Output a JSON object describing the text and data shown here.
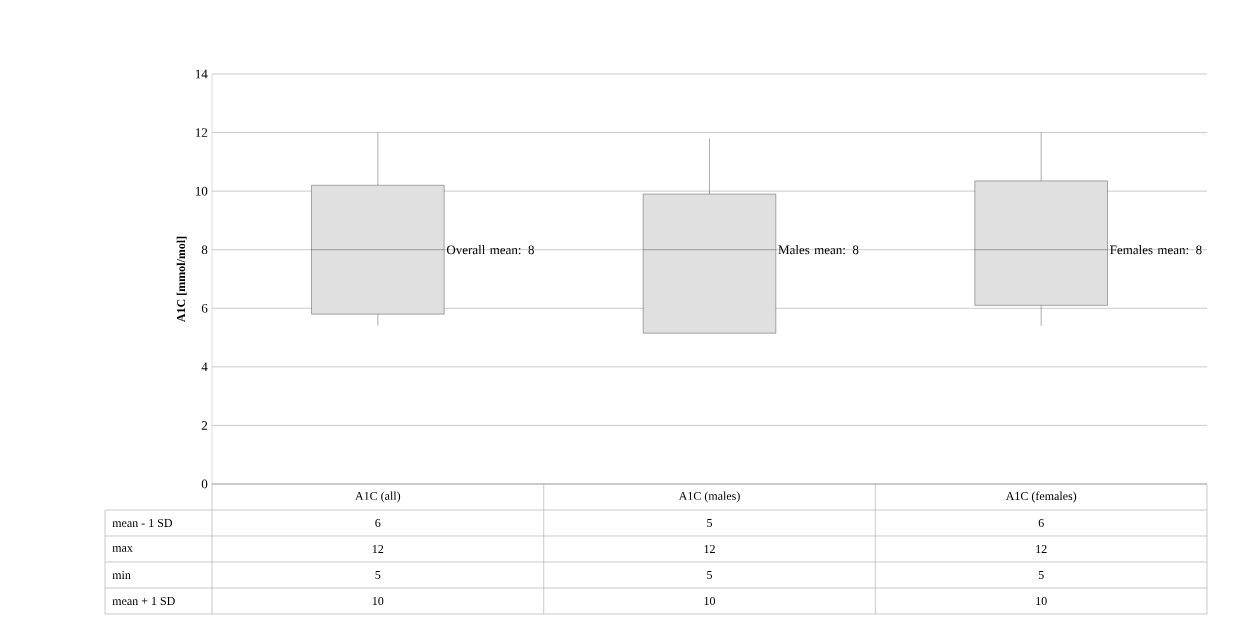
{
  "chart_data": {
    "type": "box",
    "ylabel": "A1C [mmol/mol]",
    "categories": [
      "A1C (all)",
      "A1C (males)",
      "A1C (females)"
    ],
    "color": "#e0e0e0",
    "boxes": [
      {
        "low": 5.4,
        "q1": 5.8,
        "median": 8,
        "q3": 10.2,
        "high": 12
      },
      {
        "low": 5.15,
        "q1": 5.15,
        "median": 8,
        "q3": 9.9,
        "high": 11.8
      },
      {
        "low": 5.4,
        "q1": 6.1,
        "median": 8,
        "q3": 10.35,
        "high": 12
      }
    ],
    "ylim": [
      0,
      14
    ],
    "yticks": [
      0,
      2,
      4,
      6,
      8,
      10,
      12,
      14
    ],
    "grid": "y",
    "annotations": [
      "Overall mean: 8",
      "Males mean: 8",
      "Females mean: 8",
      "mean - 1 SD",
      "6",
      "5",
      "6",
      "max",
      "12",
      "12",
      "12",
      "min",
      "5",
      "5",
      "5",
      "mean + 1 SD",
      "10",
      "10",
      "10"
    ]
  }
}
